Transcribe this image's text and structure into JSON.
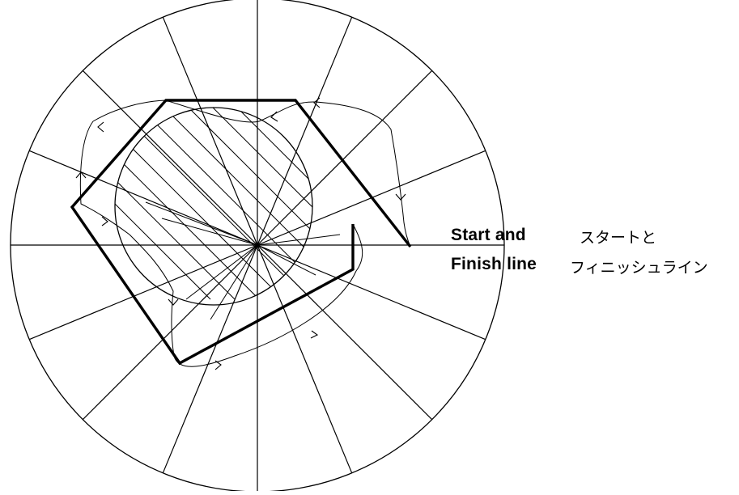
{
  "labels": {
    "english_line1": "Start and",
    "english_line2": "Finish line",
    "japanese_line1": "スタートと",
    "japanese_line2": "フィニッシュライン"
  },
  "diagram": {
    "spoke_count": 16,
    "colors": {
      "stroke": "#000000",
      "background": "#ffffff"
    }
  }
}
